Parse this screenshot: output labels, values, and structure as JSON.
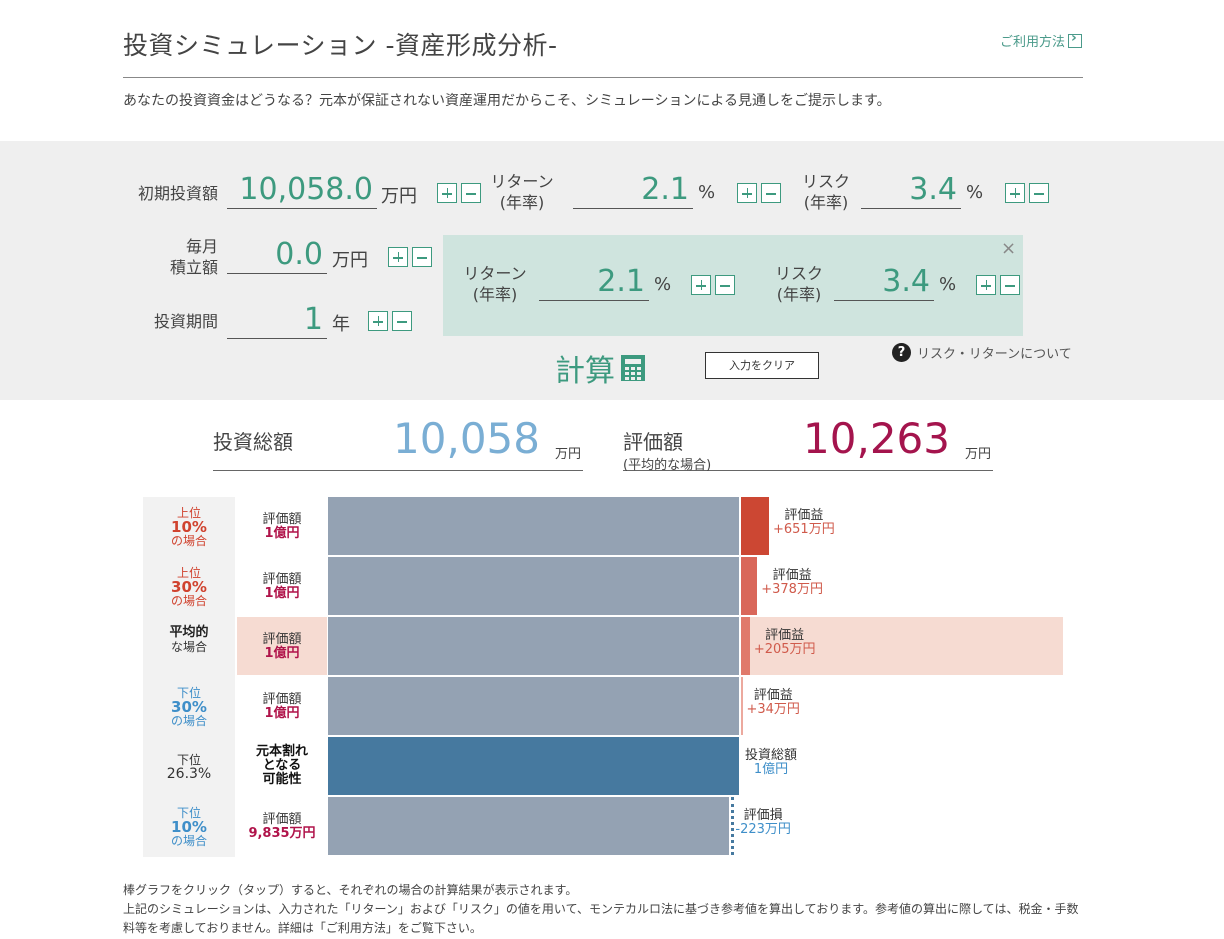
{
  "header": {
    "title": "投資シミュレーション -資産形成分析-",
    "help_link": "ご利用方法",
    "intro": "あなたの投資資金はどうなる？元本が保証されない資産運用だからこそ、シミュレーションによる見通しをご提示します。"
  },
  "inputs": {
    "initial": {
      "label": "初期投資額",
      "value": "10,058.0",
      "unit": "万円"
    },
    "monthly": {
      "label_line1": "毎月",
      "label_line2": "積立額",
      "value": "0.0",
      "unit": "万円"
    },
    "period": {
      "label": "投資期間",
      "value": "1",
      "unit": "年"
    },
    "return1": {
      "label_line1": "リターン",
      "label_line2": "(年率)",
      "value": "2.1",
      "unit": "%"
    },
    "risk1": {
      "label_line1": "リスク",
      "label_line2": "(年率)",
      "value": "3.4",
      "unit": "%"
    },
    "return2": {
      "label_line1": "リターン",
      "label_line2": "(年率)",
      "value": "2.1",
      "unit": "%"
    },
    "risk2": {
      "label_line1": "リスク",
      "label_line2": "(年率)",
      "value": "3.4",
      "unit": "%"
    }
  },
  "actions": {
    "calc": "計算",
    "clear": "入力をクリア",
    "risk_return_link": "リスク・リターンについて",
    "close": "×"
  },
  "summary": {
    "total_label": "投資総額",
    "total_value": "10,058",
    "total_unit": "万円",
    "eval_label": "評価額",
    "eval_sub": "(平均的な場合)",
    "eval_value": "10,263",
    "eval_unit": "万円",
    "total_color": "#7aaed4",
    "eval_color": "#a4144d"
  },
  "chart_data": {
    "type": "bar",
    "rows": [
      {
        "cat1": "上位",
        "cat2": "10%",
        "cat3": "の場合",
        "eval_label": "評価額",
        "eval_amount": "1億円",
        "gain_label": "評価益",
        "gain_value": "+651万円",
        "gain": 651
      },
      {
        "cat1": "上位",
        "cat2": "30%",
        "cat3": "の場合",
        "eval_label": "評価額",
        "eval_amount": "1億円",
        "gain_label": "評価益",
        "gain_value": "+378万円",
        "gain": 378
      },
      {
        "cat1": "平均的",
        "cat2": "",
        "cat3": "な場合",
        "eval_label": "評価額",
        "eval_amount": "1億円",
        "gain_label": "評価益",
        "gain_value": "+205万円",
        "gain": 205
      },
      {
        "cat1": "下位",
        "cat2": "30%",
        "cat3": "の場合",
        "eval_label": "評価額",
        "eval_amount": "1億円",
        "gain_label": "評価益",
        "gain_value": "+34万円",
        "gain": 34
      },
      {
        "cat1": "下位",
        "cat2": "26.3%",
        "cat3": "",
        "eval_label": "元本割れとなる可能性",
        "eval_amount": "",
        "gain_label": "投資総額",
        "gain_value": "1億円",
        "gain": 0
      },
      {
        "cat1": "下位",
        "cat2": "10%",
        "cat3": "の場合",
        "eval_label": "評価額",
        "eval_amount": "9,835万円",
        "gain_label": "評価損",
        "gain_value": "-223万円",
        "gain": -223
      }
    ]
  },
  "footer": {
    "line1": "棒グラフをクリック（タップ）すると、それぞれの場合の計算結果が表示されます。",
    "line2": "上記のシミュレーションは、入力された「リターン」および「リスク」の値を用いて、モンテカルロ法に基づき参考値を算出しております。参考値の算出に際しては、税金・手数料等を考慮しておりません。詳細は「ご利用方法」をご覧下さい。"
  }
}
